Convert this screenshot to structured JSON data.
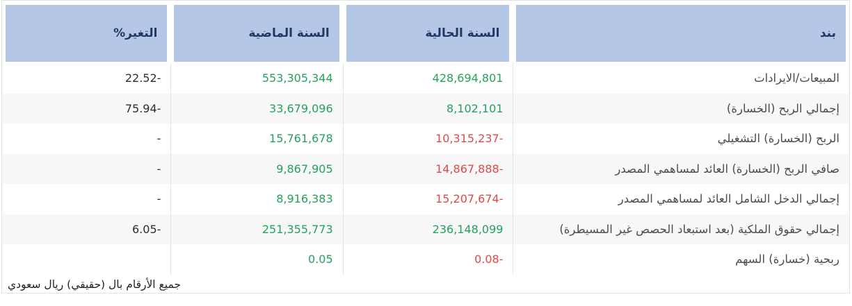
{
  "table": {
    "columns": {
      "item": "بند",
      "current_year": "السنة الحالية",
      "previous_year": "السنة الماضية",
      "change_pct": "التغير%"
    },
    "rows": [
      {
        "item": "المبيعات/الايرادات",
        "current": "428,694,801",
        "previous": "553,305,344",
        "change": "22.52-"
      },
      {
        "item": "إجمالي الربح (الخسارة)",
        "current": "8,102,101",
        "previous": "33,679,096",
        "change": "75.94-"
      },
      {
        "item": "الربح (الخسارة) التشغيلي",
        "current": "10,315,237-",
        "previous": "15,761,678",
        "change": "-"
      },
      {
        "item": "صافي الربح (الخسارة) العائد لمساهمي المصدر",
        "current": "14,867,888-",
        "previous": "9,867,905",
        "change": "-"
      },
      {
        "item": "إجمالي الدخل الشامل العائد لمساهمي المصدر",
        "current": "15,207,674-",
        "previous": "8,916,383",
        "change": "-"
      },
      {
        "item": "إجمالي حقوق الملكية (بعد استبعاد الحصص غير المسيطرة)",
        "current": "236,148,099",
        "previous": "251,355,773",
        "change": "6.05-"
      },
      {
        "item": "ربحية (خسارة) السهم",
        "current": "0.08-",
        "previous": "0.05",
        "change": ""
      }
    ],
    "footer_note": "جميع الأرقام بال (حقيقي) ريال سعودي"
  },
  "colors": {
    "positive_value": "#25a05f",
    "negative_value": "#dc4a4a",
    "header_background": "#b4c7e7",
    "header_text": "#1f3864",
    "stripe_background": "#f7f7f7",
    "border": "#e3e3e5"
  }
}
